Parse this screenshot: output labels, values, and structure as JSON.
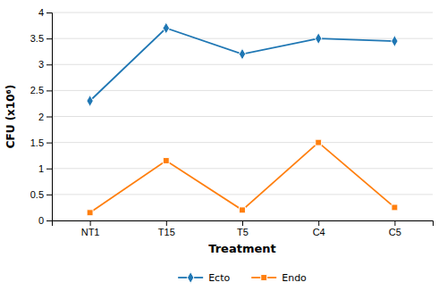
{
  "chart_data": {
    "type": "line",
    "categories": [
      "NT1",
      "T15",
      "T5",
      "C4",
      "C5"
    ],
    "series": [
      {
        "name": "Ecto",
        "values": [
          2.3,
          3.7,
          3.2,
          3.5,
          3.45
        ],
        "marker": "diamond"
      },
      {
        "name": "Endo",
        "values": [
          0.15,
          1.15,
          0.2,
          1.5,
          0.25
        ],
        "marker": "square"
      }
    ],
    "xlabel": "Treatment",
    "ylabel": "CFU (x10⁶)",
    "ylim": [
      0,
      4.0
    ],
    "yticks": [
      0,
      0.5,
      1,
      1.5,
      2,
      2.5,
      3,
      3.5,
      4
    ],
    "grid": true,
    "legend": "bottom"
  }
}
